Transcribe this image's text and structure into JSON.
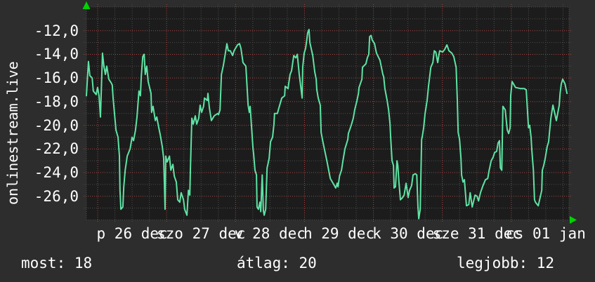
{
  "watermark": {
    "text": "onlinestream.live"
  },
  "stats": {
    "most": "most: 18",
    "atlag": "átlag: 20",
    "legjobb": "legjobb: 12"
  },
  "colors": {
    "page_bg": "#2d2d2d",
    "plot_bg": "#1c1c1c",
    "grid_minor": "#4d4d4d",
    "grid_major": "#aa4444",
    "line": "#5fe3a4",
    "arrow": "#00d400",
    "text": "#ffffff"
  },
  "chart_data": {
    "type": "line",
    "title": "",
    "xlabel": "",
    "ylabel": "",
    "legend_position": "none",
    "grid": true,
    "x_unit": "hours from plot start",
    "x_total_hours": 168,
    "first_midnight_hour": 3.92,
    "day_step_hours": 24,
    "minor_x_step_hours": 6,
    "ylim": [
      -28,
      -10
    ],
    "y_minor_step": 1,
    "y_major_ticks": [
      {
        "value": -12,
        "label": "-12,0"
      },
      {
        "value": -14,
        "label": "-14,0"
      },
      {
        "value": -16,
        "label": "-16,0"
      },
      {
        "value": -18,
        "label": "-18,0"
      },
      {
        "value": -20,
        "label": "-20,0"
      },
      {
        "value": -22,
        "label": "-22,0"
      },
      {
        "value": -24,
        "label": "-24,0"
      },
      {
        "value": -26,
        "label": "-26,0"
      }
    ],
    "x_day_labels": [
      {
        "label": "p 26 dec",
        "noon_hour": 15.92
      },
      {
        "label": "szo 27 dec",
        "noon_hour": 39.92
      },
      {
        "label": "v 28 dec",
        "noon_hour": 63.92
      },
      {
        "label": "h 29 dec",
        "noon_hour": 87.92
      },
      {
        "label": "k 30 dec",
        "noon_hour": 111.92
      },
      {
        "label": "sze 31 dec",
        "noon_hour": 135.92
      },
      {
        "label": "cs 01 jan",
        "noon_hour": 159.92
      }
    ],
    "series": [
      {
        "name": "value",
        "points": [
          [
            0,
            -17.5
          ],
          [
            0.7,
            -14.6
          ],
          [
            1.2,
            -15.8
          ],
          [
            2.0,
            -16.0
          ],
          [
            2.4,
            -17.1
          ],
          [
            3.4,
            -17.4
          ],
          [
            3.9,
            -16.8
          ],
          [
            4.4,
            -17.5
          ],
          [
            4.9,
            -19.3
          ],
          [
            5.6,
            -13.9
          ],
          [
            6.1,
            -15.0
          ],
          [
            6.6,
            -15.7
          ],
          [
            7.1,
            -15.0
          ],
          [
            7.8,
            -16.1
          ],
          [
            8.6,
            -16.4
          ],
          [
            9.0,
            -16.6
          ],
          [
            9.3,
            -17.7
          ],
          [
            10.3,
            -20.4
          ],
          [
            11.0,
            -21.0
          ],
          [
            11.5,
            -22.6
          ],
          [
            11.7,
            -25.5
          ],
          [
            12.0,
            -27.1
          ],
          [
            12.7,
            -26.9
          ],
          [
            13.0,
            -25.2
          ],
          [
            13.5,
            -23.8
          ],
          [
            14.2,
            -22.6
          ],
          [
            15.2,
            -22.0
          ],
          [
            15.9,
            -21.0
          ],
          [
            16.4,
            -21.3
          ],
          [
            17.1,
            -20.4
          ],
          [
            17.6,
            -19.3
          ],
          [
            18.3,
            -17.1
          ],
          [
            18.8,
            -17.5
          ],
          [
            19.1,
            -15.9
          ],
          [
            19.6,
            -14.2
          ],
          [
            20.1,
            -14.0
          ],
          [
            20.5,
            -15.7
          ],
          [
            21.0,
            -15.0
          ],
          [
            21.5,
            -16.3
          ],
          [
            22.5,
            -17.3
          ],
          [
            22.7,
            -18.9
          ],
          [
            23.2,
            -18.4
          ],
          [
            24.0,
            -19.6
          ],
          [
            24.5,
            -19.3
          ],
          [
            25.2,
            -20.2
          ],
          [
            25.7,
            -20.8
          ],
          [
            26.4,
            -21.8
          ],
          [
            26.9,
            -22.8
          ],
          [
            27.4,
            -27.1
          ],
          [
            27.6,
            -22.6
          ],
          [
            28.1,
            -23.1
          ],
          [
            28.9,
            -22.6
          ],
          [
            29.4,
            -23.8
          ],
          [
            30.1,
            -23.3
          ],
          [
            30.6,
            -24.3
          ],
          [
            31.3,
            -24.8
          ],
          [
            31.8,
            -26.3
          ],
          [
            32.5,
            -26.5
          ],
          [
            33.0,
            -25.7
          ],
          [
            33.8,
            -26.3
          ],
          [
            34.2,
            -27.1
          ],
          [
            35.0,
            -27.6
          ],
          [
            35.5,
            -25.5
          ],
          [
            36.0,
            -25.9
          ],
          [
            36.2,
            -23.8
          ],
          [
            36.7,
            -19.4
          ],
          [
            37.2,
            -19.9
          ],
          [
            37.9,
            -19.2
          ],
          [
            38.4,
            -19.9
          ],
          [
            39.1,
            -19.4
          ],
          [
            39.6,
            -18.3
          ],
          [
            40.1,
            -18.9
          ],
          [
            40.8,
            -18.4
          ],
          [
            41.1,
            -17.7
          ],
          [
            42.1,
            -17.9
          ],
          [
            42.3,
            -17.3
          ],
          [
            42.8,
            -18.5
          ],
          [
            43.5,
            -19.6
          ],
          [
            44.5,
            -19.2
          ],
          [
            45.7,
            -19.0
          ],
          [
            46.0,
            -19.1
          ],
          [
            46.5,
            -18.7
          ],
          [
            47.0,
            -15.7
          ],
          [
            47.2,
            -15.5
          ],
          [
            47.7,
            -14.9
          ],
          [
            48.9,
            -13.1
          ],
          [
            49.4,
            -13.7
          ],
          [
            50.1,
            -13.7
          ],
          [
            50.9,
            -14.1
          ],
          [
            51.4,
            -13.7
          ],
          [
            52.6,
            -13.2
          ],
          [
            53.3,
            -13.1
          ],
          [
            53.8,
            -13.5
          ],
          [
            54.5,
            -14.7
          ],
          [
            55.5,
            -15.0
          ],
          [
            56.3,
            -18.3
          ],
          [
            56.7,
            -18.9
          ],
          [
            57.0,
            -18.4
          ],
          [
            58.0,
            -22.0
          ],
          [
            58.2,
            -22.4
          ],
          [
            58.7,
            -23.8
          ],
          [
            59.2,
            -24.2
          ],
          [
            59.4,
            -26.9
          ],
          [
            59.9,
            -27.1
          ],
          [
            60.4,
            -26.5
          ],
          [
            60.7,
            -27.3
          ],
          [
            61.2,
            -24.2
          ],
          [
            61.6,
            -27.2
          ],
          [
            61.9,
            -27.6
          ],
          [
            62.4,
            -27.1
          ],
          [
            62.9,
            -23.6
          ],
          [
            63.1,
            -23.4
          ],
          [
            63.6,
            -22.8
          ],
          [
            64.1,
            -21.4
          ],
          [
            64.8,
            -21.0
          ],
          [
            65.3,
            -19.9
          ],
          [
            65.5,
            -19.0
          ],
          [
            66.5,
            -19.0
          ],
          [
            66.8,
            -18.7
          ],
          [
            68.0,
            -17.7
          ],
          [
            69.0,
            -17.5
          ],
          [
            69.2,
            -16.7
          ],
          [
            70.2,
            -16.9
          ],
          [
            70.4,
            -16.5
          ],
          [
            70.9,
            -15.7
          ],
          [
            71.4,
            -15.4
          ],
          [
            72.2,
            -14.1
          ],
          [
            72.9,
            -14.3
          ],
          [
            73.4,
            -14.0
          ],
          [
            74.1,
            -15.7
          ],
          [
            75.1,
            -17.7
          ],
          [
            75.3,
            -15.1
          ],
          [
            75.8,
            -13.9
          ],
          [
            76.3,
            -13.5
          ],
          [
            76.6,
            -13.0
          ],
          [
            77.0,
            -12.2
          ],
          [
            77.5,
            -11.9
          ],
          [
            77.8,
            -13.0
          ],
          [
            78.8,
            -14.1
          ],
          [
            79.5,
            -15.5
          ],
          [
            80.0,
            -16.1
          ],
          [
            80.2,
            -17.0
          ],
          [
            80.7,
            -17.7
          ],
          [
            81.4,
            -18.3
          ],
          [
            81.7,
            -20.6
          ],
          [
            82.4,
            -21.5
          ],
          [
            83.7,
            -23.0
          ],
          [
            84.9,
            -24.5
          ],
          [
            86.1,
            -25.0
          ],
          [
            86.8,
            -25.3
          ],
          [
            87.3,
            -24.9
          ],
          [
            87.6,
            -25.2
          ],
          [
            88.1,
            -24.3
          ],
          [
            88.8,
            -23.8
          ],
          [
            89.3,
            -23.0
          ],
          [
            90.0,
            -22.0
          ],
          [
            91.0,
            -21.2
          ],
          [
            91.2,
            -20.7
          ],
          [
            92.2,
            -20.0
          ],
          [
            92.9,
            -19.4
          ],
          [
            93.4,
            -18.7
          ],
          [
            94.2,
            -17.9
          ],
          [
            94.7,
            -17.3
          ],
          [
            94.9,
            -16.8
          ],
          [
            95.9,
            -16.1
          ],
          [
            96.1,
            -15.1
          ],
          [
            97.3,
            -14.8
          ],
          [
            97.8,
            -14.3
          ],
          [
            98.3,
            -14.0
          ],
          [
            98.6,
            -12.5
          ],
          [
            99.1,
            -12.4
          ],
          [
            99.5,
            -12.8
          ],
          [
            100.3,
            -13.1
          ],
          [
            100.8,
            -13.7
          ],
          [
            101.0,
            -13.9
          ],
          [
            102.2,
            -14.5
          ],
          [
            103.2,
            -15.7
          ],
          [
            103.5,
            -15.9
          ],
          [
            103.9,
            -16.9
          ],
          [
            104.7,
            -17.9
          ],
          [
            105.2,
            -18.7
          ],
          [
            105.7,
            -19.9
          ],
          [
            105.9,
            -21.0
          ],
          [
            106.4,
            -23.0
          ],
          [
            106.9,
            -23.4
          ],
          [
            107.1,
            -25.3
          ],
          [
            107.6,
            -25.2
          ],
          [
            108.1,
            -23.0
          ],
          [
            108.4,
            -23.4
          ],
          [
            108.8,
            -24.8
          ],
          [
            109.3,
            -26.3
          ],
          [
            110.1,
            -26.1
          ],
          [
            110.6,
            -25.9
          ],
          [
            111.3,
            -24.9
          ],
          [
            112.0,
            -26.1
          ],
          [
            112.5,
            -25.5
          ],
          [
            113.2,
            -25.1
          ],
          [
            113.7,
            -24.2
          ],
          [
            114.5,
            -24.1
          ],
          [
            115.0,
            -24.2
          ],
          [
            115.4,
            -26.8
          ],
          [
            115.7,
            -27.9
          ],
          [
            116.2,
            -27.1
          ],
          [
            116.7,
            -21.2
          ],
          [
            116.9,
            -21.0
          ],
          [
            117.4,
            -20.2
          ],
          [
            117.9,
            -19.0
          ],
          [
            118.1,
            -18.7
          ],
          [
            118.6,
            -17.9
          ],
          [
            119.1,
            -16.7
          ],
          [
            119.9,
            -15.1
          ],
          [
            120.6,
            -14.7
          ],
          [
            121.1,
            -13.7
          ],
          [
            121.6,
            -13.8
          ],
          [
            122.3,
            -14.7
          ],
          [
            122.8,
            -13.9
          ],
          [
            123.0,
            -13.7
          ],
          [
            124.0,
            -13.8
          ],
          [
            124.7,
            -13.6
          ],
          [
            125.5,
            -13.2
          ],
          [
            126.2,
            -13.7
          ],
          [
            127.2,
            -13.9
          ],
          [
            127.9,
            -14.2
          ],
          [
            128.7,
            -15.1
          ],
          [
            129.1,
            -17.7
          ],
          [
            129.4,
            -20.6
          ],
          [
            129.9,
            -21.2
          ],
          [
            130.4,
            -22.8
          ],
          [
            130.6,
            -24.2
          ],
          [
            131.1,
            -24.8
          ],
          [
            131.6,
            -24.6
          ],
          [
            131.8,
            -25.3
          ],
          [
            132.3,
            -26.8
          ],
          [
            133.1,
            -26.7
          ],
          [
            133.6,
            -25.7
          ],
          [
            134.3,
            -26.9
          ],
          [
            135.3,
            -25.9
          ],
          [
            136.0,
            -26.0
          ],
          [
            136.5,
            -26.4
          ],
          [
            137.2,
            -25.7
          ],
          [
            137.9,
            -25.2
          ],
          [
            138.9,
            -24.6
          ],
          [
            139.7,
            -24.5
          ],
          [
            140.2,
            -23.8
          ],
          [
            140.4,
            -23.6
          ],
          [
            140.9,
            -23.0
          ],
          [
            141.6,
            -22.7
          ],
          [
            142.1,
            -22.3
          ],
          [
            142.8,
            -22.2
          ],
          [
            143.3,
            -21.5
          ],
          [
            143.8,
            -21.3
          ],
          [
            144.1,
            -23.6
          ],
          [
            144.6,
            -23.8
          ],
          [
            145.0,
            -18.4
          ],
          [
            145.8,
            -18.7
          ],
          [
            146.5,
            -20.4
          ],
          [
            147.0,
            -20.7
          ],
          [
            147.5,
            -20.2
          ],
          [
            147.7,
            -17.5
          ],
          [
            148.2,
            -16.3
          ],
          [
            149.4,
            -16.8
          ],
          [
            151.2,
            -16.9
          ],
          [
            152.4,
            -16.9
          ],
          [
            153.1,
            -17.0
          ],
          [
            153.9,
            -20.2
          ],
          [
            154.3,
            -20.0
          ],
          [
            154.8,
            -21.0
          ],
          [
            155.1,
            -22.2
          ],
          [
            155.6,
            -23.8
          ],
          [
            156.0,
            -26.3
          ],
          [
            156.3,
            -26.5
          ],
          [
            157.3,
            -26.8
          ],
          [
            158.5,
            -25.5
          ],
          [
            158.7,
            -23.8
          ],
          [
            159.2,
            -23.4
          ],
          [
            159.7,
            -22.8
          ],
          [
            160.4,
            -21.8
          ],
          [
            160.9,
            -21.4
          ],
          [
            161.2,
            -20.6
          ],
          [
            161.7,
            -19.4
          ],
          [
            162.4,
            -18.3
          ],
          [
            163.4,
            -19.4
          ],
          [
            163.6,
            -19.6
          ],
          [
            164.6,
            -18.3
          ],
          [
            164.9,
            -17.3
          ],
          [
            165.3,
            -16.5
          ],
          [
            165.8,
            -16.1
          ],
          [
            166.6,
            -16.5
          ],
          [
            167.3,
            -17.3
          ]
        ]
      }
    ]
  }
}
